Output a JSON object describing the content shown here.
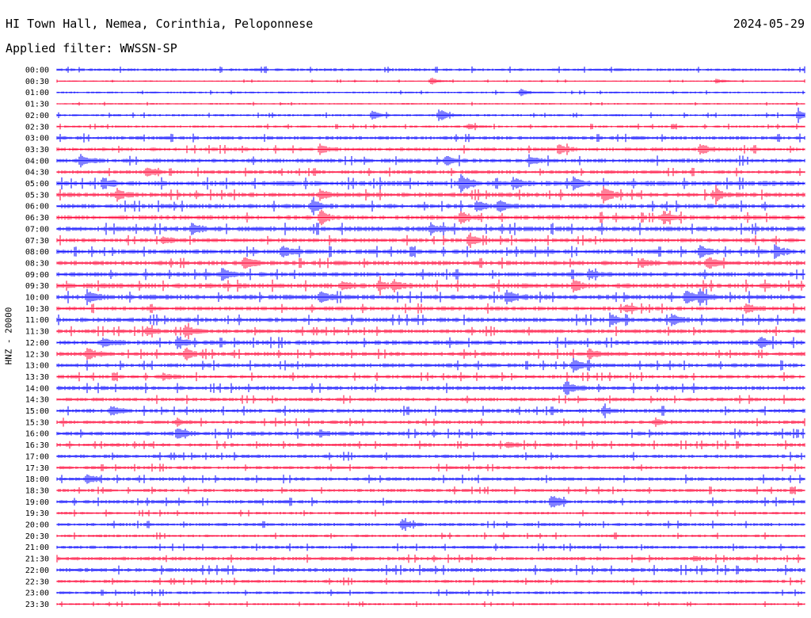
{
  "header": {
    "station": "HI Town Hall, Nemea, Corinthia, Peloponnese",
    "date": "2024-05-29",
    "filter": "Applied filter: WWSSN-SP"
  },
  "chart_data": {
    "type": "line",
    "title": "HI Town Hall, Nemea, Corinthia, Peloponnese",
    "ylabel": "HNZ - 20000",
    "xlabel": "",
    "colors": [
      "#0000ff",
      "#ff0033"
    ],
    "rows": [
      "00:00",
      "00:30",
      "01:00",
      "01:30",
      "02:00",
      "02:30",
      "03:00",
      "03:30",
      "04:00",
      "04:30",
      "05:00",
      "05:30",
      "06:00",
      "06:30",
      "07:00",
      "07:30",
      "08:00",
      "08:30",
      "09:00",
      "09:30",
      "10:00",
      "10:30",
      "11:00",
      "11:30",
      "12:00",
      "12:30",
      "13:00",
      "13:30",
      "14:00",
      "14:30",
      "15:00",
      "15:30",
      "16:00",
      "16:30",
      "17:00",
      "17:30",
      "18:00",
      "18:30",
      "19:00",
      "19:30",
      "20:00",
      "20:30",
      "21:00",
      "21:30",
      "22:00",
      "22:30",
      "23:00",
      "23:30"
    ],
    "noise": [
      1.2,
      0.6,
      0.8,
      0.7,
      1.0,
      1.0,
      1.6,
      1.6,
      1.8,
      1.6,
      2.2,
      2.0,
      2.0,
      2.0,
      2.2,
      1.8,
      2.0,
      2.0,
      2.0,
      2.2,
      2.2,
      1.8,
      2.0,
      1.8,
      2.0,
      1.8,
      1.8,
      1.6,
      1.8,
      1.6,
      1.8,
      1.6,
      1.8,
      1.6,
      1.6,
      1.4,
      1.6,
      1.4,
      1.6,
      1.2,
      1.4,
      1.2,
      1.4,
      1.6,
      1.8,
      1.4,
      1.2,
      1.0
    ],
    "events": [
      {
        "row": 1,
        "x": 0.5,
        "a": 4
      },
      {
        "row": 1,
        "x": 0.88,
        "a": 3
      },
      {
        "row": 2,
        "x": 0.62,
        "a": 4
      },
      {
        "row": 4,
        "x": 0.42,
        "a": 6
      },
      {
        "row": 4,
        "x": 0.51,
        "a": 8
      },
      {
        "row": 4,
        "x": 0.99,
        "a": 7
      },
      {
        "row": 5,
        "x": 0.55,
        "a": 3
      },
      {
        "row": 7,
        "x": 0.35,
        "a": 6
      },
      {
        "row": 7,
        "x": 0.67,
        "a": 7
      },
      {
        "row": 7,
        "x": 0.86,
        "a": 7
      },
      {
        "row": 8,
        "x": 0.03,
        "a": 8
      },
      {
        "row": 8,
        "x": 0.52,
        "a": 7
      },
      {
        "row": 8,
        "x": 0.63,
        "a": 6
      },
      {
        "row": 9,
        "x": 0.12,
        "a": 6
      },
      {
        "row": 10,
        "x": 0.06,
        "a": 7
      },
      {
        "row": 10,
        "x": 0.54,
        "a": 12
      },
      {
        "row": 10,
        "x": 0.61,
        "a": 6
      },
      {
        "row": 10,
        "x": 0.69,
        "a": 7
      },
      {
        "row": 11,
        "x": 0.08,
        "a": 6
      },
      {
        "row": 11,
        "x": 0.35,
        "a": 6
      },
      {
        "row": 11,
        "x": 0.73,
        "a": 10
      },
      {
        "row": 11,
        "x": 0.88,
        "a": 7
      },
      {
        "row": 12,
        "x": 0.34,
        "a": 8
      },
      {
        "row": 12,
        "x": 0.56,
        "a": 8
      },
      {
        "row": 12,
        "x": 0.59,
        "a": 8
      },
      {
        "row": 13,
        "x": 0.35,
        "a": 10
      },
      {
        "row": 13,
        "x": 0.54,
        "a": 7
      },
      {
        "row": 13,
        "x": 0.81,
        "a": 8
      },
      {
        "row": 14,
        "x": 0.18,
        "a": 6
      },
      {
        "row": 14,
        "x": 0.5,
        "a": 6
      },
      {
        "row": 15,
        "x": 0.14,
        "a": 4
      },
      {
        "row": 15,
        "x": 0.55,
        "a": 7
      },
      {
        "row": 16,
        "x": 0.3,
        "a": 7
      },
      {
        "row": 16,
        "x": 0.86,
        "a": 7
      },
      {
        "row": 16,
        "x": 0.96,
        "a": 8
      },
      {
        "row": 17,
        "x": 0.25,
        "a": 8
      },
      {
        "row": 17,
        "x": 0.78,
        "a": 7
      },
      {
        "row": 17,
        "x": 0.87,
        "a": 8
      },
      {
        "row": 18,
        "x": 0.22,
        "a": 7
      },
      {
        "row": 18,
        "x": 0.71,
        "a": 6
      },
      {
        "row": 19,
        "x": 0.38,
        "a": 6
      },
      {
        "row": 19,
        "x": 0.43,
        "a": 6
      },
      {
        "row": 19,
        "x": 0.45,
        "a": 6
      },
      {
        "row": 19,
        "x": 0.69,
        "a": 7
      },
      {
        "row": 20,
        "x": 0.04,
        "a": 7
      },
      {
        "row": 20,
        "x": 0.35,
        "a": 7
      },
      {
        "row": 20,
        "x": 0.6,
        "a": 9
      },
      {
        "row": 20,
        "x": 0.84,
        "a": 8
      },
      {
        "row": 20,
        "x": 0.86,
        "a": 7
      },
      {
        "row": 21,
        "x": 0.76,
        "a": 5
      },
      {
        "row": 21,
        "x": 0.92,
        "a": 6
      },
      {
        "row": 22,
        "x": 0.74,
        "a": 7
      },
      {
        "row": 22,
        "x": 0.82,
        "a": 9
      },
      {
        "row": 23,
        "x": 0.12,
        "a": 6
      },
      {
        "row": 23,
        "x": 0.17,
        "a": 7
      },
      {
        "row": 24,
        "x": 0.06,
        "a": 7
      },
      {
        "row": 24,
        "x": 0.16,
        "a": 6
      },
      {
        "row": 24,
        "x": 0.94,
        "a": 7
      },
      {
        "row": 25,
        "x": 0.04,
        "a": 8
      },
      {
        "row": 25,
        "x": 0.17,
        "a": 7
      },
      {
        "row": 25,
        "x": 0.71,
        "a": 7
      },
      {
        "row": 26,
        "x": 0.69,
        "a": 8
      },
      {
        "row": 27,
        "x": 0.14,
        "a": 5
      },
      {
        "row": 28,
        "x": 0.68,
        "a": 9
      },
      {
        "row": 30,
        "x": 0.07,
        "a": 6
      },
      {
        "row": 30,
        "x": 0.73,
        "a": 5
      },
      {
        "row": 31,
        "x": 0.16,
        "a": 4
      },
      {
        "row": 31,
        "x": 0.8,
        "a": 4
      },
      {
        "row": 32,
        "x": 0.16,
        "a": 7
      },
      {
        "row": 32,
        "x": 0.35,
        "a": 4
      },
      {
        "row": 33,
        "x": 0.6,
        "a": 4
      },
      {
        "row": 36,
        "x": 0.04,
        "a": 6
      },
      {
        "row": 38,
        "x": 0.66,
        "a": 9
      },
      {
        "row": 40,
        "x": 0.46,
        "a": 7
      },
      {
        "row": 43,
        "x": 0.85,
        "a": 3
      }
    ]
  }
}
